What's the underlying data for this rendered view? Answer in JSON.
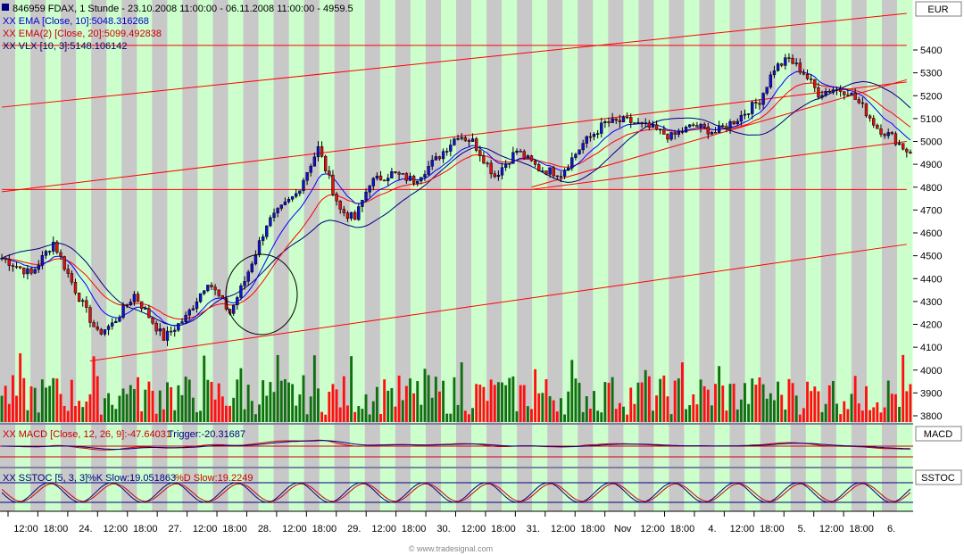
{
  "header": {
    "title": "846959 FDAX, 1 Stunde - 23.10.2008 11:00:00 - 06.11.2008 11:00:00 - 4959.5",
    "currency": "EUR"
  },
  "indicators": {
    "ema10": "XX EMA [Close, 10]:5048.316268",
    "ema20": "XX EMA(2) [Close, 20]:5099.492838",
    "vlx": "XX VLX [10, 3]:5148.106142",
    "macd": "XX MACD [Close, 12, 26, 9]:-47.64031",
    "macd_trigger": "Trigger:-20.31687",
    "sstoc": "XX SSTOC [5, 3, 3]",
    "sstoc_k": "%K Slow:19.051863",
    "sstoc_d": "%D Slow:19.2249"
  },
  "panes": {
    "macd_label": "MACD",
    "sstoc_label": "SSTOC"
  },
  "watermark": "© www.tradesignal.com",
  "colors": {
    "up": "#1010d0",
    "down": "#e01010",
    "vol_up": "#107010",
    "vol_down": "#ff1010",
    "band_green": "#ccffcc",
    "band_gray": "#c8c8c8",
    "ema10": "#0000ff",
    "ema20": "#ff0000",
    "vlx": "#000080",
    "trend": "#ff0000"
  },
  "chart_data": {
    "type": "candlestick",
    "ylim": [
      3750,
      5550
    ],
    "yticks": [
      3800,
      3900,
      4000,
      4100,
      4200,
      4300,
      4400,
      4500,
      4600,
      4700,
      4800,
      4900,
      5000,
      5100,
      5200,
      5300,
      5400
    ],
    "xticks": [
      "12:00",
      "18:00",
      "24.",
      "12:00",
      "18:00",
      "27.",
      "12:00",
      "18:00",
      "28.",
      "12:00",
      "18:00",
      "29.",
      "12:00",
      "18:00",
      "30.",
      "12:00",
      "18:00",
      "31.",
      "12:00",
      "18:00",
      "Nov",
      "12:00",
      "18:00",
      "4.",
      "12:00",
      "18:00",
      "5.",
      "12:00",
      "18:00",
      "6."
    ],
    "key_points": [
      {
        "x": 0,
        "y": 4490
      },
      {
        "x": 8,
        "y": 4420
      },
      {
        "x": 14,
        "y": 4560
      },
      {
        "x": 20,
        "y": 4350
      },
      {
        "x": 26,
        "y": 4160
      },
      {
        "x": 30,
        "y": 4200
      },
      {
        "x": 36,
        "y": 4330
      },
      {
        "x": 44,
        "y": 4140
      },
      {
        "x": 50,
        "y": 4230
      },
      {
        "x": 56,
        "y": 4390
      },
      {
        "x": 62,
        "y": 4250
      },
      {
        "x": 66,
        "y": 4390
      },
      {
        "x": 72,
        "y": 4640
      },
      {
        "x": 80,
        "y": 4770
      },
      {
        "x": 86,
        "y": 4970
      },
      {
        "x": 92,
        "y": 4700
      },
      {
        "x": 96,
        "y": 4660
      },
      {
        "x": 100,
        "y": 4820
      },
      {
        "x": 106,
        "y": 4860
      },
      {
        "x": 112,
        "y": 4830
      },
      {
        "x": 118,
        "y": 4920
      },
      {
        "x": 124,
        "y": 5030
      },
      {
        "x": 128,
        "y": 5000
      },
      {
        "x": 134,
        "y": 4850
      },
      {
        "x": 140,
        "y": 4960
      },
      {
        "x": 146,
        "y": 4880
      },
      {
        "x": 152,
        "y": 4860
      },
      {
        "x": 158,
        "y": 4990
      },
      {
        "x": 164,
        "y": 5080
      },
      {
        "x": 170,
        "y": 5090
      },
      {
        "x": 176,
        "y": 5060
      },
      {
        "x": 182,
        "y": 5020
      },
      {
        "x": 188,
        "y": 5070
      },
      {
        "x": 194,
        "y": 5040
      },
      {
        "x": 200,
        "y": 5100
      },
      {
        "x": 206,
        "y": 5180
      },
      {
        "x": 210,
        "y": 5320
      },
      {
        "x": 214,
        "y": 5360
      },
      {
        "x": 218,
        "y": 5300
      },
      {
        "x": 222,
        "y": 5210
      },
      {
        "x": 226,
        "y": 5230
      },
      {
        "x": 230,
        "y": 5220
      },
      {
        "x": 234,
        "y": 5150
      },
      {
        "x": 238,
        "y": 5060
      },
      {
        "x": 242,
        "y": 5020
      },
      {
        "x": 246,
        "y": 4960
      }
    ],
    "n_bars": 248
  }
}
